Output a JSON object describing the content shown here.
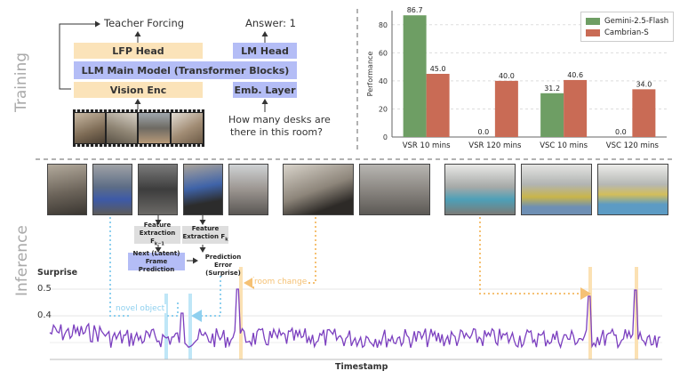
{
  "colors": {
    "peach": "#fbe3b9",
    "lavender": "#b4bdf6",
    "gemini": "#6e9e64",
    "cambrian": "#c96b55",
    "surprise_line": "#7b3fbf",
    "novel_object": "#a6dcf5",
    "room_change": "#f7c77a"
  },
  "sections": {
    "training": "Training",
    "inference": "Inference"
  },
  "training_diagram": {
    "teacher_forcing": "Teacher Forcing",
    "answer": "Answer: 1",
    "lfp_head": "LFP Head",
    "lm_head": "LM Head",
    "main_model": "LLM Main Model (Transformer Blocks)",
    "vision_enc": "Vision Enc",
    "emb_layer": "Emb. Layer",
    "question_line1": "How many desks are",
    "question_line2": "there in this room?"
  },
  "chart_data": {
    "type": "bar",
    "categories": [
      "VSR 10 mins",
      "VSR 120 mins",
      "VSC 10 mins",
      "VSC 120 mins"
    ],
    "series": [
      {
        "name": "Gemini-2.5-Flash",
        "values": [
          86.7,
          0.0,
          31.2,
          0.0
        ],
        "labels": [
          "86.7",
          "0.0",
          "31.2",
          "0.0"
        ]
      },
      {
        "name": "Cambrian-S",
        "values": [
          45.0,
          40.0,
          40.6,
          34.0
        ],
        "labels": [
          "45.0",
          "40.0",
          "40.6",
          "34.0"
        ]
      }
    ],
    "ylabel": "Performance",
    "ylim": [
      0,
      90
    ],
    "yticks": [
      "0",
      "20",
      "40",
      "60",
      "80"
    ],
    "legend_position": "top-right",
    "grid": true
  },
  "inference_diagram": {
    "feature_prev": "Feature Extraction F_{k-1}",
    "feature_prev_l1": "Feature",
    "feature_prev_l2": "Extraction F",
    "feature_prev_sub": "k−1",
    "feature_cur_l1": "Feature",
    "feature_cur_l2": "Extraction F",
    "feature_cur_sub": "k",
    "next_frame_l1": "Next (Latent)",
    "next_frame_l2": "Frame Prediction",
    "pred_error_l1": "Prediction Error",
    "pred_error_l2": "(Surprise)",
    "novel_object": "novel object",
    "room_change": "room change"
  },
  "surprise_plot": {
    "ylabel": "Surprise",
    "xlabel": "Timestamp",
    "yticks": [
      "0.5",
      "0.4"
    ]
  }
}
